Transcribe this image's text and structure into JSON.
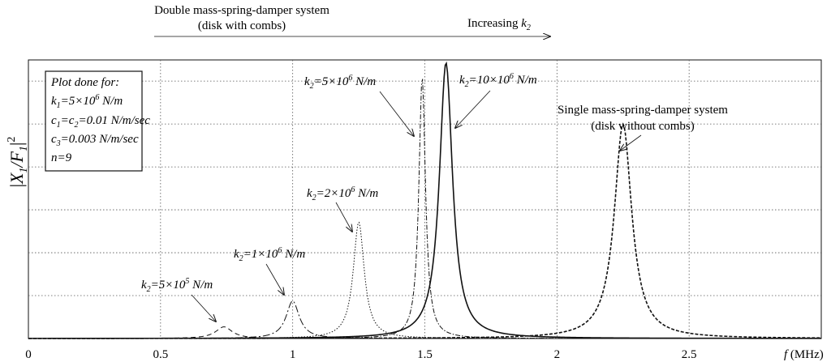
{
  "chart_data": {
    "type": "line",
    "title": "",
    "xlabel": "f (MHz)",
    "xlabel_var": "f",
    "xlabel_unit": " (MHz)",
    "ylabel": "|X1/F1|^2",
    "ylabel_parts": {
      "X": "X",
      "sub1": "1",
      "F": "F",
      "sub2": "1",
      "pow": "2"
    },
    "xlim": [
      0,
      3.0
    ],
    "ylim": [
      0,
      1.0
    ],
    "x_ticks": [
      {
        "v": 0,
        "label": "0"
      },
      {
        "v": 0.5,
        "label": "0.5"
      },
      {
        "v": 1,
        "label": "1"
      },
      {
        "v": 1.5,
        "label": "1.5"
      },
      {
        "v": 2,
        "label": "2"
      },
      {
        "v": 2.5,
        "label": "2.5"
      }
    ],
    "y_gridlines": [
      0.154,
      0.308,
      0.462,
      0.616,
      0.77,
      0.924
    ],
    "grid": true,
    "series": [
      {
        "key": "k5e5",
        "style": "dash",
        "peaks": [
          {
            "f0": 0.74,
            "a": 0.042,
            "g": 0.038
          }
        ]
      },
      {
        "key": "k1e6",
        "style": "dashdot",
        "peaks": [
          {
            "f0": 1.0,
            "a": 0.135,
            "g": 0.03
          }
        ]
      },
      {
        "key": "k2e6",
        "style": "dot",
        "peaks": [
          {
            "f0": 1.25,
            "a": 0.418,
            "g": 0.025
          }
        ]
      },
      {
        "key": "k5e6",
        "style": "dashdot2",
        "peaks": [
          {
            "f0": 1.49,
            "a": 0.94,
            "g": 0.015
          }
        ]
      },
      {
        "key": "k10e6",
        "style": "solid",
        "peaks": [
          {
            "f0": 1.58,
            "a": 0.99,
            "g": 0.03
          }
        ]
      },
      {
        "key": "single",
        "style": "dashed-bold",
        "peaks": [
          {
            "f0": 2.25,
            "a": 0.77,
            "g": 0.04
          }
        ]
      }
    ],
    "info_box": {
      "title": "Plot done for:",
      "lines": [
        "k1=5×10^6 N/m",
        "c1=c2=0.01 N/m/sec",
        "c3=0.003 N/m/sec",
        "n=9"
      ]
    },
    "annotations": {
      "top_left_line1": "Double mass-spring-damper system",
      "top_left_line2": "(disk with combs)",
      "top_right": "Increasing k2",
      "single_line1": "Single mass-spring-damper system",
      "single_line2": "(disk without combs)",
      "k2_5e5": "k2=5×10^5 N/m",
      "k2_1e6": "k2=1×10^6 N/m",
      "k2_2e6": "k2=2×10^6 N/m",
      "k2_5e6": "k2=5×10^6 N/m",
      "k2_10e6": "k2=10×10^6 N/m"
    },
    "text": {
      "box_title": "Plot done for:",
      "k1_var": "k",
      "k1_sub": "1",
      "k1_val": "=5×10",
      "k1_exp": "6",
      "k1_unit": " N/m",
      "c_line_a": "c",
      "c_sub1": "1",
      "c_mid": "=c",
      "c_sub2": "2",
      "c_rest": "=0.01 N/m/sec",
      "c3_var": "c",
      "c3_sub": "3",
      "c3_rest": "=0.003 N/m/sec",
      "n_line": "n=9",
      "k2_var": "k",
      "k2_sub": "2",
      "lbl_5e5_val": "=5×10",
      "lbl_5e5_exp": "5",
      "lbl_unit": " N/m",
      "lbl_1e6_val": "=1×10",
      "lbl_1e6_exp": "6",
      "lbl_2e6_val": "=2×10",
      "lbl_2e6_exp": "6",
      "lbl_5e6_val": "=5×10",
      "lbl_5e6_exp": "6",
      "lbl_10e6_val": "=10×10",
      "lbl_10e6_exp": "6",
      "increasing": "Increasing ",
      "top_left_line1": "Double mass-spring-damper system",
      "top_left_line2": "(disk with combs)",
      "single_line1": "Single mass-spring-damper system",
      "single_line2": "(disk without combs)"
    },
    "colors": {
      "line": "#111111",
      "grid": "#555555",
      "box": "#111111"
    }
  }
}
